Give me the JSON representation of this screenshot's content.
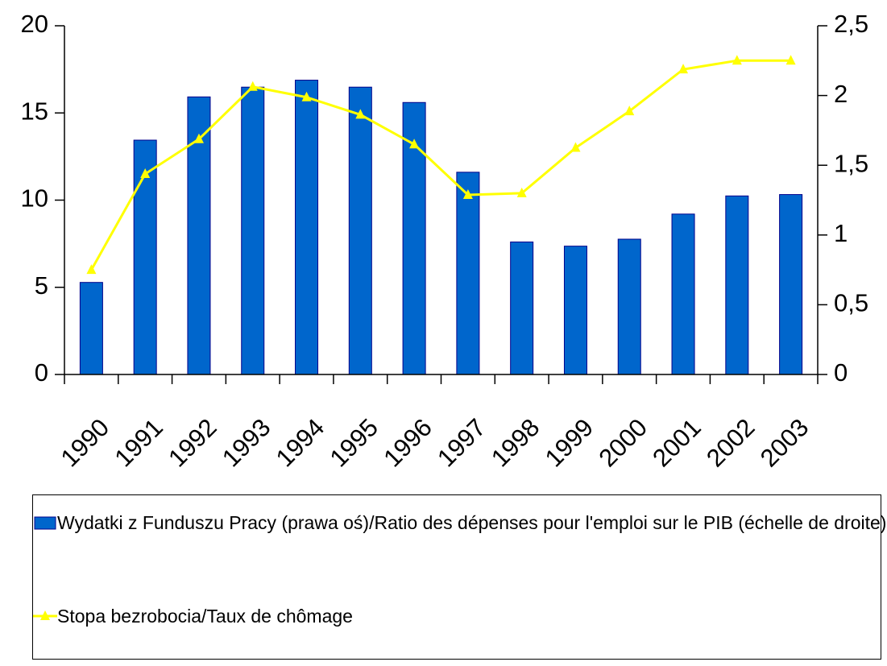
{
  "chart_data": {
    "type": "bar-line",
    "categories": [
      "1990",
      "1991",
      "1992",
      "1993",
      "1994",
      "1995",
      "1996",
      "1997",
      "1998",
      "1999",
      "2000",
      "2001",
      "2002",
      "2003"
    ],
    "series": [
      {
        "name": "Wydatki z Funduszu Pracy (prawa oś)/Ratio des dépenses pour l'emploi sur le PIB (échelle de droite)",
        "type": "bar",
        "axis": "y2",
        "color": "#0066cc",
        "values": [
          0.66,
          1.68,
          1.99,
          2.06,
          2.11,
          2.06,
          1.95,
          1.45,
          0.95,
          0.92,
          0.97,
          1.15,
          1.28,
          1.29
        ]
      },
      {
        "name": "Stopa bezrobocia/Taux de chômage",
        "type": "line",
        "color": "#ffff00",
        "values": [
          6.0,
          11.5,
          13.5,
          16.5,
          15.9,
          14.9,
          13.2,
          10.3,
          10.4,
          13.0,
          15.1,
          17.5,
          18.0,
          18.0
        ]
      }
    ],
    "ylim": [
      0,
      20
    ],
    "yticks": [
      0,
      5,
      10,
      15,
      20
    ],
    "y2lim": [
      0,
      2.5
    ],
    "y2ticks": [
      0,
      {
        "value": 0.5,
        "label": "0,5"
      },
      1,
      {
        "value": 1.5,
        "label": "1,5"
      },
      2,
      {
        "value": 2.5,
        "label": "2,5"
      }
    ],
    "grid": false
  }
}
